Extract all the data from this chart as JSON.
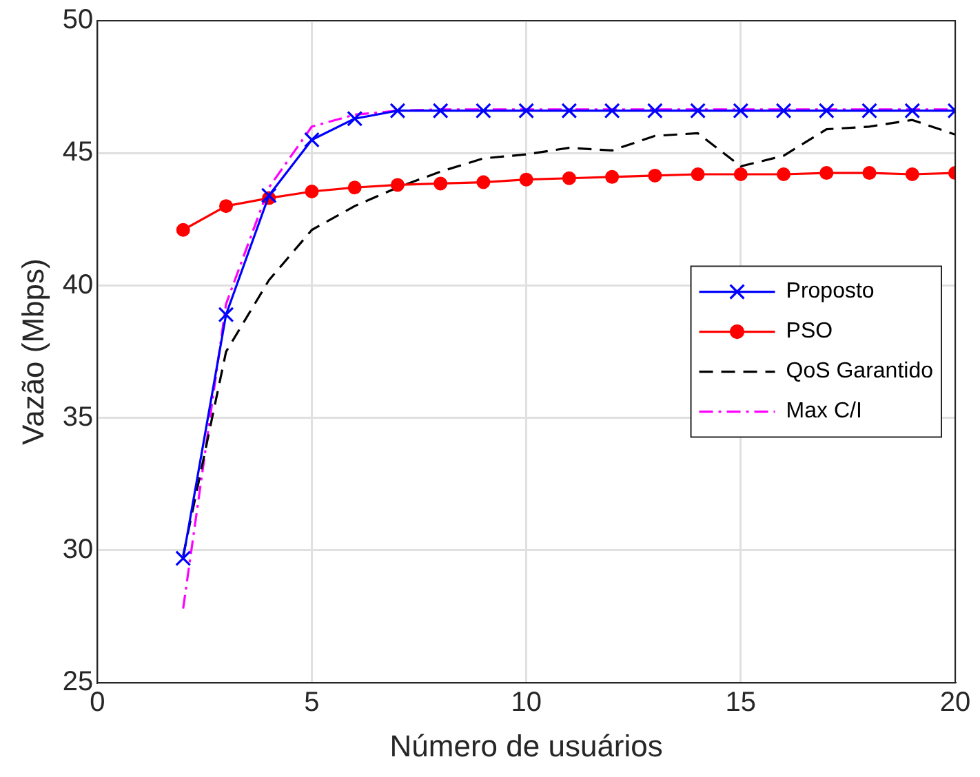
{
  "chart_data": {
    "type": "line",
    "xlabel": "Número de usuários",
    "ylabel": "Vazão (Mbps)",
    "x": [
      2,
      3,
      4,
      5,
      6,
      7,
      8,
      9,
      10,
      11,
      12,
      13,
      14,
      15,
      16,
      17,
      18,
      19,
      20
    ],
    "xlim": [
      0,
      20
    ],
    "xticks": [
      0,
      5,
      10,
      15,
      20
    ],
    "ylim": [
      25,
      50
    ],
    "yticks": [
      25,
      30,
      35,
      40,
      45,
      50
    ],
    "grid": true,
    "legend": "right",
    "series": [
      {
        "name": "Proposto",
        "color": "#0000ff",
        "marker": "cross",
        "line_style": "solid",
        "values": [
          29.7,
          38.9,
          43.4,
          45.5,
          46.3,
          46.6,
          46.6,
          46.6,
          46.6,
          46.6,
          46.6,
          46.6,
          46.6,
          46.6,
          46.6,
          46.6,
          46.6,
          46.6,
          46.6
        ]
      },
      {
        "name": "PSO",
        "color": "#ff0000",
        "marker": "circle",
        "line_style": "solid",
        "values": [
          42.1,
          43.0,
          43.3,
          43.55,
          43.7,
          43.8,
          43.85,
          43.9,
          44.0,
          44.05,
          44.1,
          44.15,
          44.2,
          44.2,
          44.2,
          44.25,
          44.25,
          44.2,
          44.25
        ]
      },
      {
        "name": "QoS Garantido",
        "color": "#000000",
        "marker": "none",
        "line_style": "dashed",
        "values": [
          29.8,
          37.5,
          40.2,
          42.1,
          43.0,
          43.7,
          44.3,
          44.8,
          44.95,
          45.2,
          45.1,
          45.65,
          45.75,
          44.5,
          44.9,
          45.9,
          46.0,
          46.25,
          45.7
        ]
      },
      {
        "name": "Max C/I",
        "color": "#ff00ff",
        "marker": "none",
        "line_style": "dashdot",
        "values": [
          27.8,
          39.3,
          43.7,
          46.0,
          46.45,
          46.6,
          46.65,
          46.65,
          46.65,
          46.65,
          46.65,
          46.65,
          46.65,
          46.65,
          46.65,
          46.65,
          46.65,
          46.65,
          46.65
        ]
      }
    ]
  }
}
